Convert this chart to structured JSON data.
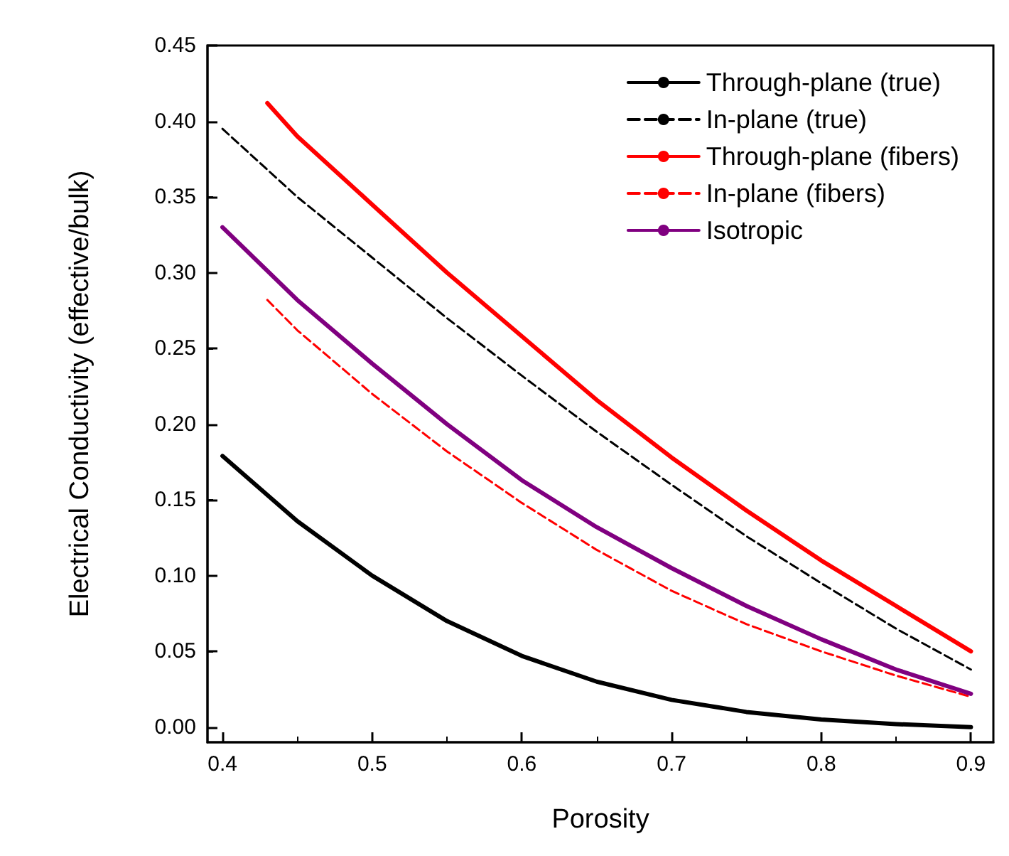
{
  "chart_data": {
    "type": "line",
    "xlabel": "Porosity",
    "ylabel": "Electrical Conductivity (effective/bulk)",
    "xlim": [
      0.39,
      0.915
    ],
    "ylim": [
      -0.01,
      0.45
    ],
    "xticks": [
      0.4,
      0.5,
      0.6,
      0.7,
      0.8,
      0.9
    ],
    "yticks": [
      {
        "value": 0,
        "label": "0.00"
      },
      {
        "value": 0.05,
        "label": "0.05"
      },
      {
        "value": 0.1,
        "label": "0.10"
      },
      {
        "value": 0.15,
        "label": "0.15"
      },
      {
        "value": 0.2,
        "label": "0.20"
      },
      {
        "value": 0.25,
        "label": "0.25"
      },
      {
        "value": 0.3,
        "label": "0.30"
      },
      {
        "value": 0.35,
        "label": "0.35"
      },
      {
        "value": 0.4,
        "label": "0.40"
      },
      {
        "value": 0.45,
        "label": "0.45"
      }
    ],
    "grid": false,
    "legend": "top right",
    "marker": "none",
    "series": [
      {
        "name": "Through-plane (true)",
        "color": "#000000",
        "line_style": "solid",
        "x": [
          0.4,
          0.45,
          0.5,
          0.55,
          0.6,
          0.65,
          0.7,
          0.75,
          0.8,
          0.85,
          0.9
        ],
        "values": [
          0.179,
          0.136,
          0.1,
          0.07,
          0.047,
          0.03,
          0.018,
          0.01,
          0.005,
          0.002,
          0.0
        ]
      },
      {
        "name": "In-plane (true)",
        "color": "#000000",
        "line_style": "dashed",
        "x": [
          0.4,
          0.45,
          0.5,
          0.55,
          0.6,
          0.65,
          0.7,
          0.75,
          0.8,
          0.85,
          0.9
        ],
        "values": [
          0.395,
          0.35,
          0.31,
          0.27,
          0.232,
          0.195,
          0.16,
          0.126,
          0.095,
          0.065,
          0.038
        ]
      },
      {
        "name": "Through-plane (fibers)",
        "color": "#ff0000",
        "line_style": "solid",
        "x": [
          0.43,
          0.45,
          0.5,
          0.55,
          0.6,
          0.65,
          0.7,
          0.75,
          0.8,
          0.85,
          0.9
        ],
        "values": [
          0.412,
          0.39,
          0.345,
          0.3,
          0.258,
          0.216,
          0.178,
          0.143,
          0.11,
          0.08,
          0.05
        ]
      },
      {
        "name": "In-plane (fibers)",
        "color": "#ff0000",
        "line_style": "dashed",
        "x": [
          0.43,
          0.45,
          0.5,
          0.55,
          0.6,
          0.65,
          0.7,
          0.75,
          0.8,
          0.85,
          0.9
        ],
        "values": [
          0.282,
          0.262,
          0.22,
          0.182,
          0.148,
          0.117,
          0.09,
          0.068,
          0.05,
          0.034,
          0.02
        ]
      },
      {
        "name": "Isotropic",
        "color": "#800080",
        "line_style": "solid",
        "x": [
          0.4,
          0.45,
          0.5,
          0.55,
          0.6,
          0.65,
          0.7,
          0.75,
          0.8,
          0.85,
          0.9
        ],
        "values": [
          0.33,
          0.282,
          0.24,
          0.2,
          0.163,
          0.132,
          0.105,
          0.08,
          0.058,
          0.038,
          0.022
        ]
      }
    ]
  }
}
